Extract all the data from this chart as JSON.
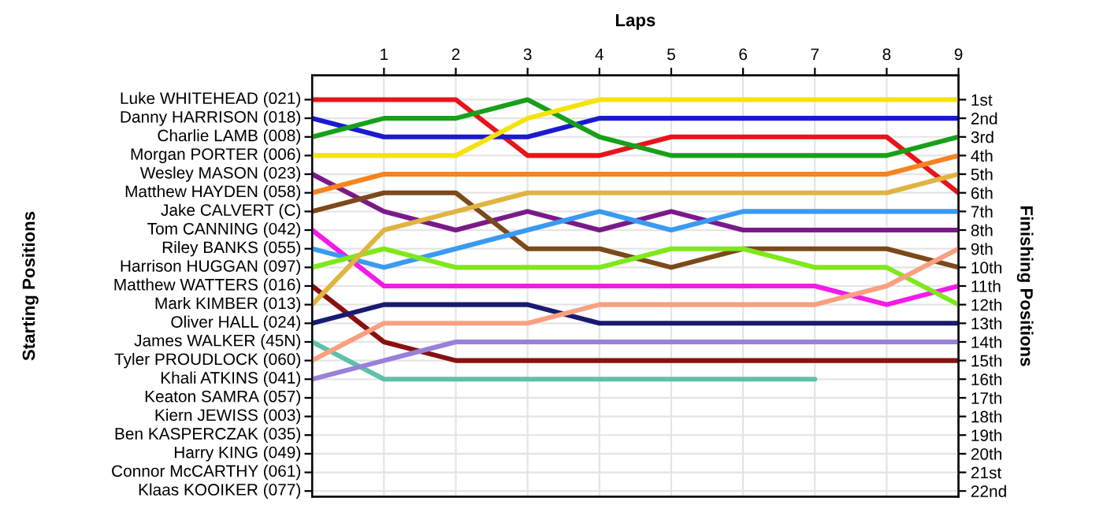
{
  "chart_data": {
    "type": "line",
    "xlabel": "Laps",
    "y2label": "Finishing Positions",
    "x": [
      0,
      1,
      2,
      3,
      4,
      5,
      6,
      7,
      8,
      9
    ],
    "xlim": [
      0,
      9
    ],
    "xticks": [
      1,
      2,
      3,
      4,
      5,
      6,
      7,
      8,
      9
    ],
    "annotations": [
      "Starting Positions",
      "Luke WHITEHEAD (021)",
      "Danny HARRISON (018)",
      "Charlie LAMB (008)",
      "Morgan PORTER (006)",
      "Wesley MASON (023)",
      "Matthew HAYDEN (058)",
      "Jake CALVERT (C)",
      "Tom CANNING (042)",
      "Riley BANKS (055)",
      "Harrison HUGGAN (097)",
      "Matthew WATTERS (016)",
      "Mark KIMBER (013)",
      "Oliver HALL (024)",
      "James WALKER (45N)",
      "Tyler PROUDLOCK (060)",
      "Khali ATKINS (041)",
      "Keaton SAMRA (057)",
      "Kiern JEWISS (003)",
      "Ben KASPERCZAK (035)",
      "Harry KING (049)",
      "Connor McCARTHY (061)",
      "Klaas KOOIKER (077)"
    ],
    "y2lim": [
      22.3,
      -0.3
    ],
    "y2ticks": [
      {
        "value": 1,
        "label": "1st"
      },
      {
        "value": 2,
        "label": "2nd"
      },
      {
        "value": 3,
        "label": "3rd"
      },
      {
        "value": 4,
        "label": "4th"
      },
      {
        "value": 5,
        "label": "5th"
      },
      {
        "value": 6,
        "label": "6th"
      },
      {
        "value": 7,
        "label": "7th"
      },
      {
        "value": 8,
        "label": "8th"
      },
      {
        "value": 9,
        "label": "9th"
      },
      {
        "value": 10,
        "label": "10th"
      },
      {
        "value": 11,
        "label": "11th"
      },
      {
        "value": 12,
        "label": "12th"
      },
      {
        "value": 13,
        "label": "13th"
      },
      {
        "value": 14,
        "label": "14th"
      },
      {
        "value": 15,
        "label": "15th"
      },
      {
        "value": 16,
        "label": "16th"
      },
      {
        "value": 17,
        "label": "17th"
      },
      {
        "value": 18,
        "label": "18th"
      },
      {
        "value": 19,
        "label": "19th"
      },
      {
        "value": 20,
        "label": "20th"
      },
      {
        "value": 21,
        "label": "21st"
      },
      {
        "value": 22,
        "label": "22nd"
      }
    ],
    "grid": true,
    "series": [
      {
        "axis": "y2",
        "color": "#e8141b",
        "values": [
          1,
          1,
          1,
          4,
          4,
          3,
          3,
          3,
          3,
          6
        ]
      },
      {
        "axis": "y2",
        "color": "#1a1ad0",
        "values": [
          2,
          3,
          3,
          3,
          2,
          2,
          2,
          2,
          2,
          2
        ]
      },
      {
        "axis": "y2",
        "color": "#17a01a",
        "values": [
          3,
          2,
          2,
          1,
          3,
          4,
          4,
          4,
          4,
          3
        ]
      },
      {
        "axis": "y2",
        "color": "#f5e20a",
        "values": [
          4,
          4,
          4,
          2,
          1,
          1,
          1,
          1,
          1,
          1
        ]
      },
      {
        "axis": "y2",
        "color": "#7a1a8a",
        "values": [
          5,
          7,
          8,
          7,
          8,
          7,
          8,
          8,
          8,
          8
        ]
      },
      {
        "axis": "y2",
        "color": "#f5841f",
        "values": [
          6,
          5,
          5,
          5,
          5,
          5,
          5,
          5,
          5,
          4
        ]
      },
      {
        "axis": "y2",
        "color": "#7a4a1a",
        "values": [
          7,
          6,
          6,
          9,
          9,
          10,
          9,
          9,
          9,
          10
        ]
      },
      {
        "axis": "y2",
        "color": "#f51ae8",
        "values": [
          8,
          11,
          11,
          11,
          11,
          11,
          11,
          11,
          12,
          11
        ]
      },
      {
        "axis": "y2",
        "color": "#3a9af0",
        "values": [
          9,
          10,
          9,
          8,
          7,
          8,
          7,
          7,
          7,
          7
        ]
      },
      {
        "axis": "y2",
        "color": "#7ee81a",
        "values": [
          10,
          9,
          10,
          10,
          10,
          9,
          9,
          10,
          10,
          12
        ]
      },
      {
        "axis": "y2",
        "color": "#8a1010",
        "values": [
          11,
          14,
          15,
          15,
          15,
          15,
          15,
          15,
          15,
          15
        ]
      },
      {
        "axis": "y2",
        "color": "#e0b440",
        "values": [
          12,
          8,
          7,
          6,
          6,
          6,
          6,
          6,
          6,
          5
        ]
      },
      {
        "axis": "y2",
        "color": "#1a1a70",
        "values": [
          13,
          12,
          12,
          12,
          13,
          13,
          13,
          13,
          13,
          13
        ]
      },
      {
        "axis": "y2",
        "color": "#5ec0a8",
        "values": [
          14,
          16,
          16,
          16,
          16,
          16,
          16,
          16,
          null,
          null
        ]
      },
      {
        "axis": "y2",
        "color": "#f8a080",
        "values": [
          15,
          13,
          13,
          13,
          12,
          12,
          12,
          12,
          11,
          9
        ]
      },
      {
        "axis": "y2",
        "color": "#9a80d8",
        "values": [
          16,
          15,
          14,
          14,
          14,
          14,
          14,
          14,
          14,
          14
        ]
      }
    ]
  }
}
